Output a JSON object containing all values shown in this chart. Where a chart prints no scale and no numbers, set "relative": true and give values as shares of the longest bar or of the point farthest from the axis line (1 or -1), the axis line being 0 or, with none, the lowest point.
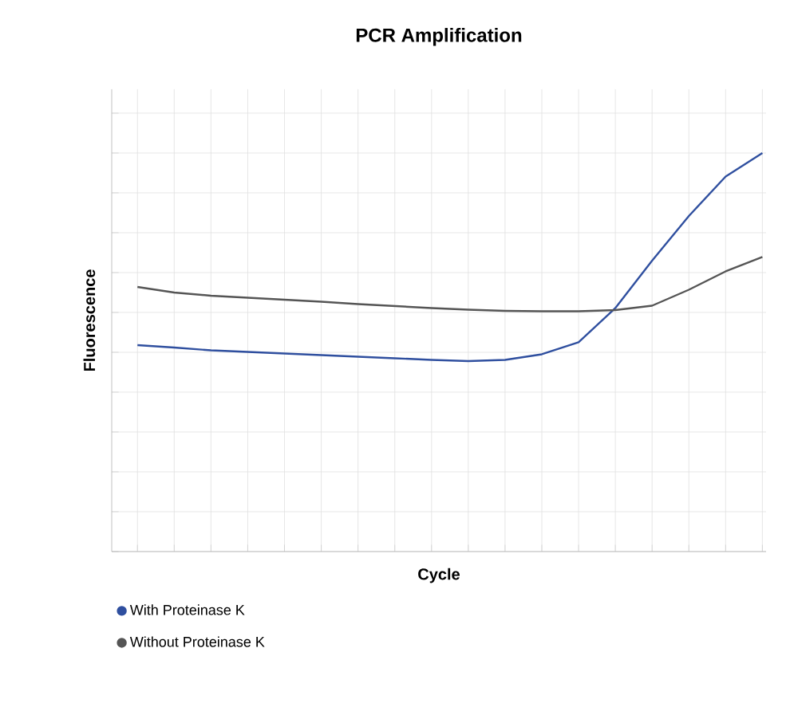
{
  "chart_data": {
    "type": "line",
    "title": "PCR Amplification",
    "xlabel": "Cycle",
    "ylabel": "Fluorescence",
    "relative": true,
    "grid": true,
    "legend": "bottom",
    "tick_labels": false,
    "categories": [
      null,
      null,
      null,
      null,
      null,
      null,
      null,
      null,
      null,
      null,
      null,
      null,
      null,
      null,
      null,
      null,
      null,
      null
    ],
    "series": [
      {
        "name": "With Proteinase K",
        "color": "#2f4f9f",
        "values": [
          0.518,
          0.512,
          0.505,
          0.501,
          0.497,
          0.493,
          0.489,
          0.485,
          0.481,
          0.478,
          0.481,
          0.495,
          0.525,
          0.611,
          0.73,
          0.842,
          0.941,
          1
        ]
      },
      {
        "name": "Without Proteinase K",
        "color": "#555555",
        "values": [
          0.664,
          0.65,
          0.642,
          0.637,
          0.632,
          0.627,
          0.621,
          0.616,
          0.611,
          0.607,
          0.604,
          0.603,
          0.603,
          0.606,
          0.617,
          0.657,
          0.703,
          0.739
        ]
      }
    ]
  }
}
